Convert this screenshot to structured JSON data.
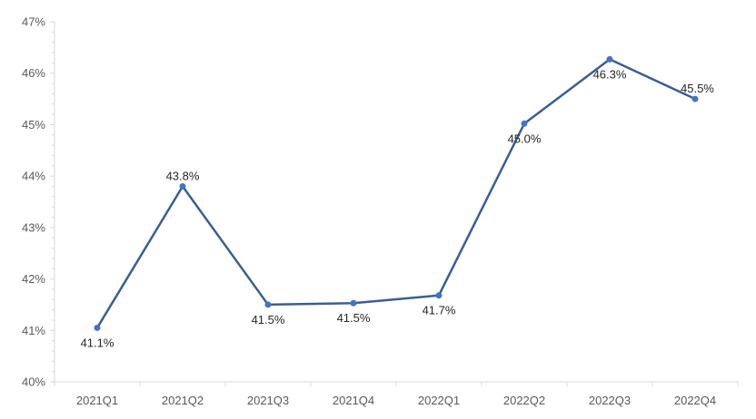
{
  "chart_data": {
    "type": "line",
    "title": "",
    "xlabel": "",
    "ylabel": "",
    "categories": [
      "2021Q1",
      "2021Q2",
      "2021Q3",
      "2021Q4",
      "2022Q1",
      "2022Q2",
      "2022Q3",
      "2022Q4"
    ],
    "series": [
      {
        "values": [
          41.05,
          43.8,
          41.5,
          41.53,
          41.68,
          45.02,
          46.27,
          45.5
        ],
        "labels": [
          "41.1%",
          "43.8%",
          "41.5%",
          "41.5%",
          "41.7%",
          "45.0%",
          "46.3%",
          "45.5%"
        ],
        "label_position": [
          "below",
          "above",
          "below",
          "below",
          "below",
          "below",
          "below",
          "right"
        ],
        "color": "#4472C4",
        "line_color": "#3A5F8F"
      }
    ],
    "ylim": [
      40,
      47
    ],
    "yticks": [
      40,
      41,
      42,
      43,
      44,
      45,
      46,
      47
    ],
    "ytick_labels": [
      "40%",
      "41%",
      "42%",
      "43%",
      "44%",
      "45%",
      "46%",
      "47%"
    ],
    "grid": false,
    "legend": "none",
    "axis_color": "#D9D9D9"
  }
}
